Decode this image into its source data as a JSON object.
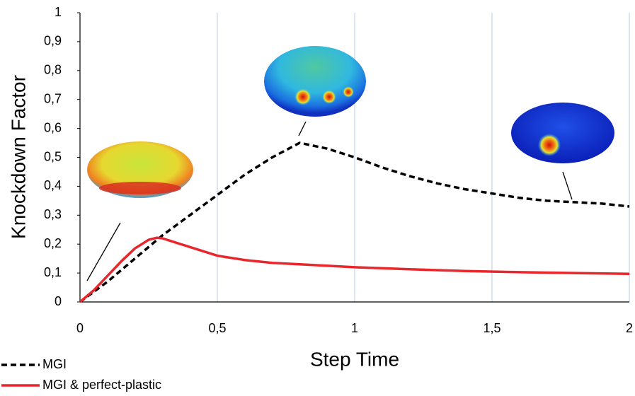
{
  "chart_data": {
    "type": "line",
    "x_label": "Step Time",
    "y_label": "Knockdown Factor",
    "xlim": [
      0,
      2
    ],
    "ylim": [
      0,
      1
    ],
    "xticks": [
      0,
      {
        "value": 0.5,
        "label": "0,5"
      },
      1,
      {
        "value": 1.5,
        "label": "1,5"
      },
      2
    ],
    "yticks": [
      0,
      {
        "value": 0.1,
        "label": "0,1"
      },
      {
        "value": 0.2,
        "label": "0,2"
      },
      {
        "value": 0.3,
        "label": "0,3"
      },
      {
        "value": 0.4,
        "label": "0,4"
      },
      {
        "value": 0.5,
        "label": "0,5"
      },
      {
        "value": 0.6,
        "label": "0,6"
      },
      {
        "value": 0.7,
        "label": "0,7"
      },
      {
        "value": 0.8,
        "label": "0,8"
      },
      {
        "value": 0.9,
        "label": "0,9"
      },
      1
    ],
    "xgrid": true,
    "series": [
      {
        "name": "MGI",
        "color": "#000000",
        "dashed": true,
        "x": [
          0,
          0.1,
          0.2,
          0.3,
          0.4,
          0.5,
          0.6,
          0.7,
          0.8,
          0.9,
          1.0,
          1.1,
          1.2,
          1.3,
          1.4,
          1.5,
          1.6,
          1.7,
          1.8,
          1.9,
          2.0
        ],
        "values": [
          0,
          0.07,
          0.15,
          0.23,
          0.3,
          0.37,
          0.44,
          0.5,
          0.55,
          0.53,
          0.5,
          0.465,
          0.435,
          0.41,
          0.39,
          0.375,
          0.36,
          0.35,
          0.345,
          0.34,
          0.33
        ]
      },
      {
        "name": "MGI & perfect-plastic",
        "color": "#e8262b",
        "dashed": false,
        "x": [
          0,
          0.05,
          0.1,
          0.15,
          0.2,
          0.25,
          0.28,
          0.3,
          0.35,
          0.4,
          0.5,
          0.6,
          0.7,
          0.8,
          1.0,
          1.2,
          1.4,
          1.6,
          1.8,
          2.0
        ],
        "values": [
          0,
          0.04,
          0.09,
          0.14,
          0.185,
          0.215,
          0.222,
          0.22,
          0.205,
          0.19,
          0.16,
          0.145,
          0.135,
          0.13,
          0.12,
          0.113,
          0.107,
          0.103,
          0.1,
          0.097
        ]
      }
    ]
  }
}
